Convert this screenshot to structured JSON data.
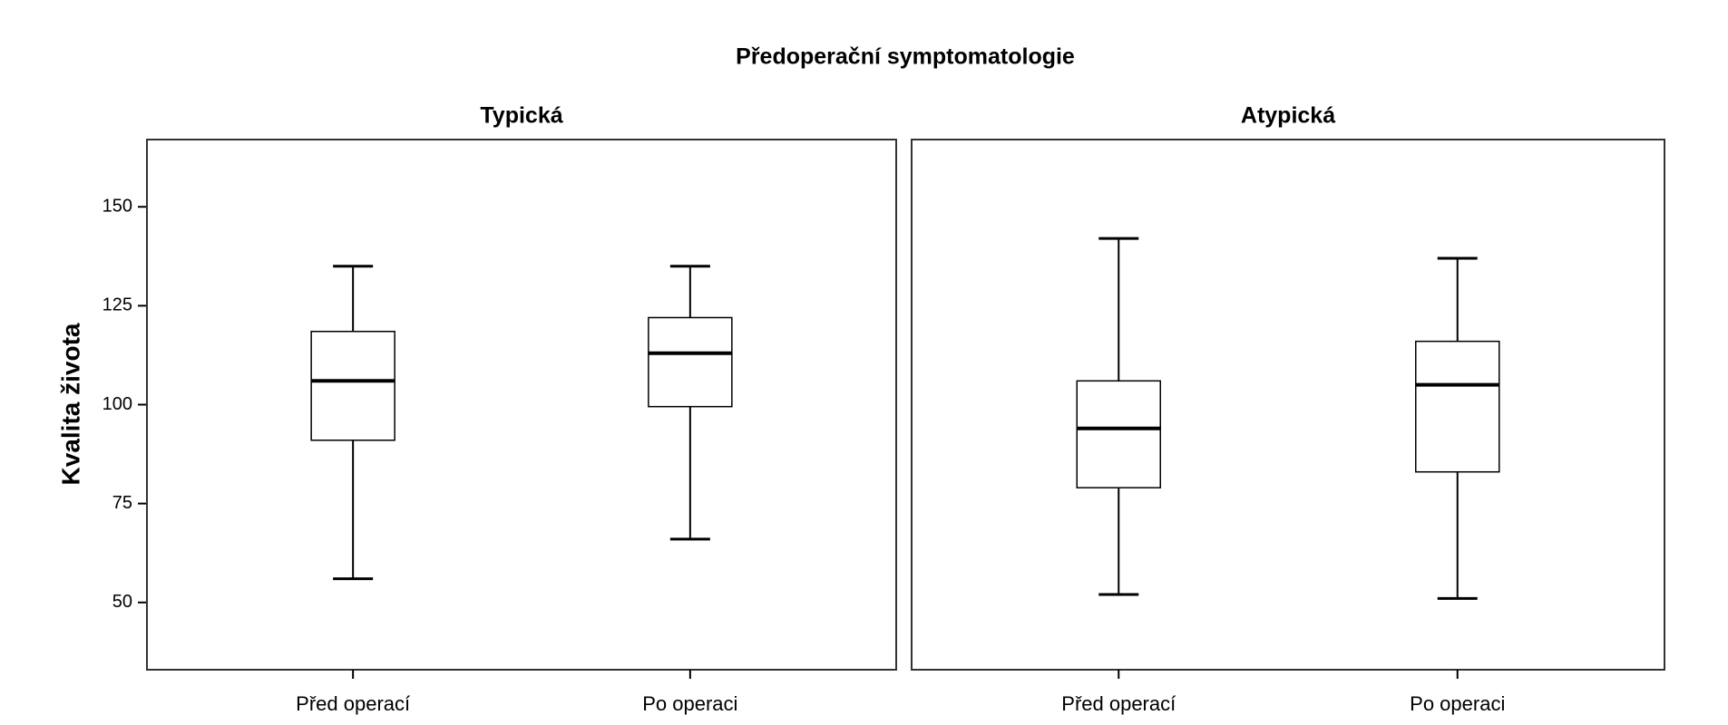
{
  "chart_data": {
    "type": "box",
    "title": "Předoperační symptomatologie",
    "ylabel": "Kvalita života",
    "ylim": [
      33,
      167
    ],
    "yticks": [
      50,
      75,
      100,
      125,
      150
    ],
    "panels": [
      {
        "title": "Typická",
        "categories": [
          "Před operací",
          "Po operaci"
        ],
        "boxes": [
          {
            "min": 56,
            "q1": 91,
            "median": 106,
            "q3": 118.5,
            "max": 135
          },
          {
            "min": 66,
            "q1": 99.5,
            "median": 113,
            "q3": 122,
            "max": 135
          }
        ]
      },
      {
        "title": "Atypická",
        "categories": [
          "Před operací",
          "Po operaci"
        ],
        "boxes": [
          {
            "min": 52,
            "q1": 79,
            "median": 94,
            "q3": 106,
            "max": 142
          },
          {
            "min": 51,
            "q1": 83,
            "median": 105,
            "q3": 116,
            "max": 137
          }
        ]
      }
    ]
  }
}
